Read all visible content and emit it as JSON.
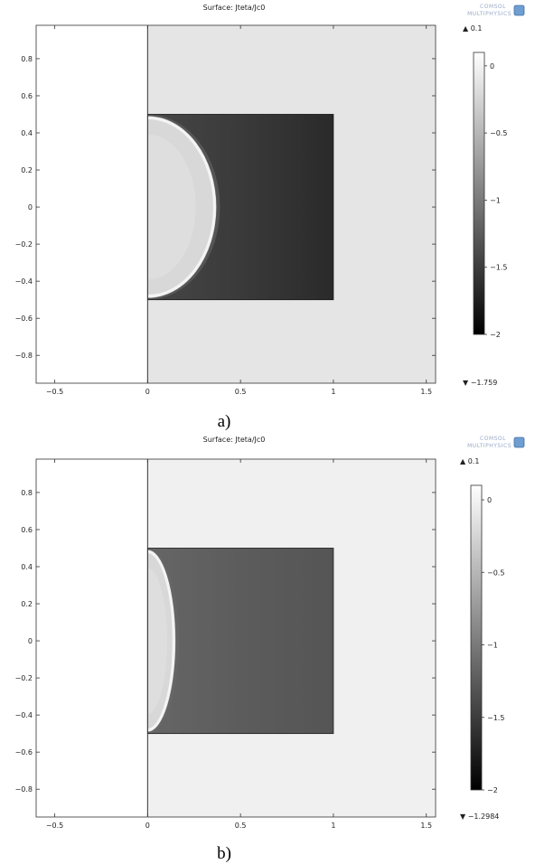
{
  "chart_data": [
    {
      "type": "heatmap",
      "panel": "a",
      "title": "Surface: Jteta/Jc0",
      "caption": "a)",
      "logo_text": [
        "COMSOL",
        "MULTIPHYSICS"
      ],
      "xlim": [
        -0.6,
        1.55
      ],
      "ylim": [
        -0.95,
        0.98
      ],
      "xticks": [
        -0.5,
        0,
        0.5,
        1,
        1.5
      ],
      "xtick_labels": [
        "−0.5",
        "0",
        "0.5",
        "1",
        "1.5"
      ],
      "yticks": [
        0.8,
        0.6,
        0.4,
        0.2,
        0,
        -0.2,
        -0.4,
        -0.6,
        -0.8
      ],
      "ytick_labels": [
        "0.8",
        "0.6",
        "0.4",
        "0.2",
        "0",
        "−0.2",
        "−0.4",
        "−0.6",
        "−0.8"
      ],
      "domain_x": [
        0,
        1.5
      ],
      "domain_y": [
        -0.95,
        0.98
      ],
      "domain_value": 0,
      "domain_color": "#e5e5e5",
      "square_x": [
        0,
        1
      ],
      "square_y": [
        -0.5,
        0.5
      ],
      "square_gradient": [
        "#474747",
        "#3a3a3a",
        "#2a2a2a"
      ],
      "penetration_depth": 0.37,
      "colorbar": {
        "max_label": "▲ 0.1",
        "min_label": "▼ −1.759",
        "range": [
          -2,
          0.1
        ],
        "ticks": [
          0,
          -0.5,
          -1,
          -1.5,
          -2
        ],
        "tick_labels": [
          "0",
          "−0.5",
          "−1",
          "−1.5",
          "−2"
        ]
      }
    },
    {
      "type": "heatmap",
      "panel": "b",
      "title": "Surface: Jteta/Jc0",
      "caption": "b)",
      "logo_text": [
        "COMSOL",
        "MULTIPHYSICS"
      ],
      "xlim": [
        -0.6,
        1.55
      ],
      "ylim": [
        -0.95,
        0.98
      ],
      "xticks": [
        -0.5,
        0,
        0.5,
        1,
        1.5
      ],
      "xtick_labels": [
        "−0.5",
        "0",
        "0.5",
        "1",
        "1.5"
      ],
      "yticks": [
        0.8,
        0.6,
        0.4,
        0.2,
        0,
        -0.2,
        -0.4,
        -0.6,
        -0.8
      ],
      "ytick_labels": [
        "0.8",
        "0.6",
        "0.4",
        "0.2",
        "0",
        "−0.2",
        "−0.4",
        "−0.6",
        "−0.8"
      ],
      "domain_x": [
        0,
        1.5
      ],
      "domain_y": [
        -0.95,
        0.98
      ],
      "domain_value": 0,
      "domain_color": "#f0f0f0",
      "square_x": [
        0,
        1
      ],
      "square_y": [
        -0.5,
        0.5
      ],
      "square_gradient": [
        "#666666",
        "#5c5c5c",
        "#555555"
      ],
      "penetration_depth": 0.15,
      "colorbar": {
        "max_label": "▲ 0.1",
        "min_label": "▼ −1.2984",
        "range": [
          -2,
          0.1
        ],
        "ticks": [
          0,
          -0.5,
          -1,
          -1.5,
          -2
        ],
        "tick_labels": [
          "0",
          "−0.5",
          "−1",
          "−1.5",
          "−2"
        ]
      }
    }
  ]
}
